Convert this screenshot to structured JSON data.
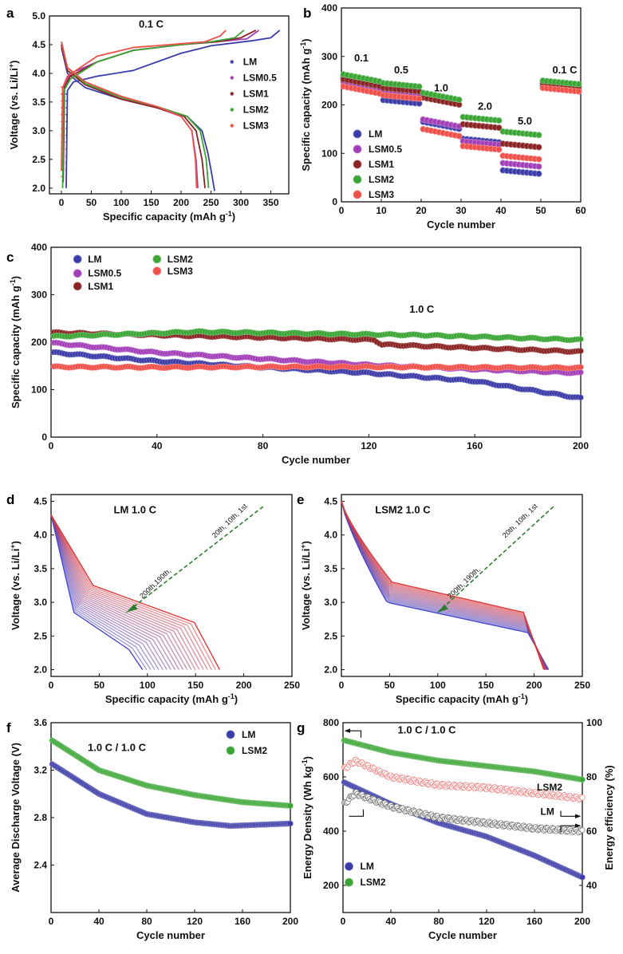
{
  "figure": {
    "width": 781,
    "height": 1196
  },
  "colors": {
    "LM": "#3b3ba8",
    "LSM0.5": "#a23fb8",
    "LSM1": "#8a2323",
    "LSM2": "#3aa534",
    "LSM3": "#f0504a",
    "LM_curve_first": "#e03a3a",
    "LM_curve_last": "#4a4acb",
    "arrow": "#2e7d2e"
  },
  "chart_data": [
    {
      "id": "a",
      "panel_label": "a",
      "type": "line",
      "annotation": "0.1 C",
      "xlabel": "Specific capacity (mAh g",
      "xlabel_sup": "-1",
      "xlabel_tail": ")",
      "ylabel": "Voltage (vs. Li/Li",
      "ylabel_sup": "+",
      "ylabel_tail": ")",
      "xlim": [
        -20,
        380
      ],
      "ylim": [
        1.9,
        5.0
      ],
      "xticks": [
        0,
        50,
        100,
        150,
        200,
        250,
        300,
        350
      ],
      "yticks": [
        2.0,
        2.5,
        3.0,
        3.5,
        4.0,
        4.5,
        5.0
      ],
      "legend": [
        "LM",
        "LSM0.5",
        "LSM1",
        "LSM2",
        "LSM3"
      ],
      "series": [
        {
          "name": "LM",
          "charge": [
            [
              8,
              2.0
            ],
            [
              10,
              3.7
            ],
            [
              20,
              3.85
            ],
            [
              60,
              3.95
            ],
            [
              120,
              4.05
            ],
            [
              200,
              4.35
            ],
            [
              250,
              4.48
            ],
            [
              320,
              4.57
            ],
            [
              350,
              4.62
            ],
            [
              365,
              4.75
            ]
          ],
          "discharge": [
            [
              0,
              4.45
            ],
            [
              10,
              4.0
            ],
            [
              40,
              3.75
            ],
            [
              100,
              3.55
            ],
            [
              160,
              3.4
            ],
            [
              210,
              3.25
            ],
            [
              235,
              3.0
            ],
            [
              245,
              2.6
            ],
            [
              252,
              2.2
            ],
            [
              256,
              1.95
            ]
          ]
        },
        {
          "name": "LSM0.5",
          "charge": [
            [
              3,
              2.3
            ],
            [
              5,
              3.8
            ],
            [
              15,
              4.0
            ],
            [
              60,
              4.2
            ],
            [
              120,
              4.4
            ],
            [
              200,
              4.5
            ],
            [
              260,
              4.55
            ],
            [
              310,
              4.6
            ],
            [
              330,
              4.75
            ]
          ],
          "discharge": [
            [
              0,
              4.5
            ],
            [
              10,
              4.05
            ],
            [
              40,
              3.8
            ],
            [
              100,
              3.55
            ],
            [
              160,
              3.4
            ],
            [
              200,
              3.25
            ],
            [
              218,
              3.0
            ],
            [
              225,
              2.5
            ],
            [
              228,
              2.0
            ]
          ]
        },
        {
          "name": "LSM1",
          "charge": [
            [
              3,
              2.1
            ],
            [
              5,
              3.75
            ],
            [
              15,
              3.95
            ],
            [
              60,
              4.2
            ],
            [
              120,
              4.4
            ],
            [
              200,
              4.5
            ],
            [
              260,
              4.55
            ],
            [
              300,
              4.62
            ],
            [
              325,
              4.75
            ]
          ],
          "discharge": [
            [
              0,
              4.5
            ],
            [
              10,
              4.05
            ],
            [
              40,
              3.8
            ],
            [
              100,
              3.55
            ],
            [
              160,
              3.4
            ],
            [
              205,
              3.25
            ],
            [
              225,
              3.0
            ],
            [
              235,
              2.5
            ],
            [
              240,
              2.0
            ]
          ]
        },
        {
          "name": "LSM2",
          "charge": [
            [
              2,
              2.0
            ],
            [
              4,
              3.7
            ],
            [
              15,
              3.9
            ],
            [
              60,
              4.2
            ],
            [
              120,
              4.4
            ],
            [
              200,
              4.5
            ],
            [
              250,
              4.55
            ],
            [
              290,
              4.62
            ],
            [
              305,
              4.75
            ]
          ],
          "discharge": [
            [
              0,
              4.55
            ],
            [
              10,
              4.1
            ],
            [
              40,
              3.82
            ],
            [
              100,
              3.58
            ],
            [
              160,
              3.42
            ],
            [
              210,
              3.25
            ],
            [
              232,
              3.0
            ],
            [
              242,
              2.5
            ],
            [
              246,
              2.0
            ]
          ]
        },
        {
          "name": "LSM3",
          "charge": [
            [
              0,
              2.3
            ],
            [
              2,
              3.75
            ],
            [
              10,
              3.95
            ],
            [
              60,
              4.3
            ],
            [
              120,
              4.45
            ],
            [
              180,
              4.5
            ],
            [
              240,
              4.55
            ],
            [
              265,
              4.65
            ],
            [
              275,
              4.75
            ]
          ],
          "discharge": [
            [
              0,
              4.55
            ],
            [
              10,
              4.1
            ],
            [
              40,
              3.85
            ],
            [
              100,
              3.6
            ],
            [
              160,
              3.42
            ],
            [
              200,
              3.25
            ],
            [
              218,
              3.0
            ],
            [
              224,
              2.5
            ],
            [
              226,
              2.0
            ]
          ]
        }
      ]
    },
    {
      "id": "b",
      "panel_label": "b",
      "type": "scatter",
      "xlabel": "Cycle number",
      "ylabel": "Specific capacity (mAh g",
      "ylabel_sup": "-1",
      "ylabel_tail": ")",
      "xlim": [
        0,
        60
      ],
      "ylim": [
        0,
        400
      ],
      "xticks": [
        0,
        10,
        20,
        30,
        40,
        50,
        60
      ],
      "yticks": [
        0,
        100,
        200,
        300,
        400
      ],
      "rate_labels": [
        "0.1",
        "0.5",
        "1.0",
        "2.0",
        "5.0",
        "0.1 C"
      ],
      "legend": [
        "LM",
        "LSM0.5",
        "LSM1",
        "LSM2",
        "LSM3"
      ],
      "segments": [
        [
          1,
          10
        ],
        [
          11,
          20
        ],
        [
          21,
          30
        ],
        [
          31,
          40
        ],
        [
          41,
          50
        ],
        [
          51,
          60
        ]
      ],
      "series": [
        {
          "name": "LM",
          "values": [
            250,
            210,
            165,
            130,
            65,
            240
          ]
        },
        {
          "name": "LSM0.5",
          "values": [
            240,
            225,
            170,
            125,
            80,
            235
          ]
        },
        {
          "name": "LSM1",
          "values": [
            245,
            235,
            215,
            160,
            120,
            245
          ]
        },
        {
          "name": "LSM2",
          "values": [
            255,
            245,
            225,
            175,
            145,
            250
          ]
        },
        {
          "name": "LSM3",
          "values": [
            230,
            220,
            150,
            115,
            95,
            235
          ]
        }
      ]
    },
    {
      "id": "c",
      "panel_label": "c",
      "type": "scatter",
      "annotation": "1.0 C",
      "xlabel": "Cycle number",
      "ylabel": "Specific capacity (mAh g",
      "ylabel_sup": "-1",
      "ylabel_tail": ")",
      "xlim": [
        0,
        200
      ],
      "ylim": [
        0,
        400
      ],
      "xticks": [
        0,
        40,
        80,
        120,
        160,
        200
      ],
      "yticks": [
        0,
        100,
        200,
        300,
        400
      ],
      "legend": [
        "LM",
        "LSM0.5",
        "LSM1",
        "LSM2",
        "LSM3"
      ],
      "series": [
        {
          "name": "LM",
          "trend": [
            [
              1,
              178
            ],
            [
              40,
              160
            ],
            [
              80,
              147
            ],
            [
              120,
              135
            ],
            [
              160,
              118
            ],
            [
              200,
              82
            ]
          ]
        },
        {
          "name": "LSM0.5",
          "trend": [
            [
              1,
              198
            ],
            [
              40,
              178
            ],
            [
              80,
              165
            ],
            [
              120,
              152
            ],
            [
              160,
              143
            ],
            [
              200,
              135
            ]
          ]
        },
        {
          "name": "LSM1",
          "trend": [
            [
              1,
              220
            ],
            [
              40,
              215
            ],
            [
              80,
              210
            ],
            [
              122,
              205
            ],
            [
              125,
              195
            ],
            [
              160,
              188
            ],
            [
              200,
              180
            ]
          ]
        },
        {
          "name": "LSM2",
          "trend": [
            [
              1,
              212
            ],
            [
              55,
              222
            ],
            [
              100,
              218
            ],
            [
              140,
              215
            ],
            [
              200,
              205
            ]
          ]
        },
        {
          "name": "LSM3",
          "trend": [
            [
              1,
              148
            ],
            [
              40,
              147
            ],
            [
              80,
              148
            ],
            [
              120,
              148
            ],
            [
              160,
              147
            ],
            [
              200,
              146
            ]
          ]
        }
      ]
    },
    {
      "id": "d",
      "panel_label": "d",
      "type": "line",
      "annotation": "LM 1.0 C",
      "arrow_labels": [
        "20th, 10th, 1st",
        "200th,190th,"
      ],
      "xlabel": "Specific capacity (mAh g",
      "xlabel_sup": "-1",
      "xlabel_tail": ")",
      "ylabel": "Voltage (vs. Li/Li",
      "ylabel_sup": "+",
      "ylabel_tail": ")",
      "xlim": [
        0,
        250
      ],
      "ylim": [
        1.9,
        4.6
      ],
      "xticks": [
        0,
        50,
        100,
        150,
        200,
        250
      ],
      "yticks": [
        2.0,
        2.5,
        3.0,
        3.5,
        4.0,
        4.5
      ],
      "curves": {
        "start_voltage": 4.3,
        "first_capacity": 175,
        "last_capacity": 95,
        "first_plateau": 2.7,
        "last_plateau": 2.3,
        "count": 20
      }
    },
    {
      "id": "e",
      "panel_label": "e",
      "type": "line",
      "annotation": "LSM2 1.0 C",
      "arrow_labels": [
        "20th, 10th, 1st",
        "200th, 190th,"
      ],
      "xlabel": "Specific capacity (mAh g",
      "xlabel_sup": "-1",
      "xlabel_tail": ")",
      "ylabel": "Voltage (vs. Li/Li",
      "ylabel_sup": "+",
      "ylabel_tail": ")",
      "xlim": [
        0,
        250
      ],
      "ylim": [
        1.9,
        4.6
      ],
      "xticks": [
        0,
        50,
        100,
        150,
        200,
        250
      ],
      "yticks": [
        2.0,
        2.5,
        3.0,
        3.5,
        4.0,
        4.5
      ],
      "curves": {
        "start_voltage": 4.5,
        "first_capacity": 210,
        "last_capacity": 215,
        "first_plateau": 3.0,
        "last_plateau": 2.7,
        "count": 20
      }
    },
    {
      "id": "f",
      "panel_label": "f",
      "type": "scatter",
      "annotation": "1.0 C / 1.0 C",
      "xlabel": "Cycle number",
      "ylabel": "Average Discharge Voltage (V)",
      "xlim": [
        0,
        200
      ],
      "ylim": [
        2.0,
        3.6
      ],
      "xticks": [
        0,
        40,
        80,
        120,
        160,
        200
      ],
      "yticks": [
        2.4,
        2.8,
        3.2,
        3.6
      ],
      "legend": [
        "LM",
        "LSM2"
      ],
      "series": [
        {
          "name": "LM",
          "trend": [
            [
              1,
              3.25
            ],
            [
              40,
              3.0
            ],
            [
              80,
              2.83
            ],
            [
              120,
              2.76
            ],
            [
              150,
              2.73
            ],
            [
              200,
              2.75
            ]
          ]
        },
        {
          "name": "LSM2",
          "trend": [
            [
              1,
              3.45
            ],
            [
              40,
              3.2
            ],
            [
              80,
              3.07
            ],
            [
              120,
              2.99
            ],
            [
              160,
              2.93
            ],
            [
              200,
              2.9
            ]
          ]
        }
      ]
    },
    {
      "id": "g",
      "panel_label": "g",
      "type": "scatter",
      "annotation": "1.0 C / 1.0 C",
      "xlabel": "Cycle number",
      "ylabel": "Energy Density (Wh kg",
      "ylabel_sup": "-1",
      "ylabel_tail": ")",
      "y2label": "Energy efficiency (%)",
      "xlim": [
        0,
        200
      ],
      "ylim": [
        100,
        800
      ],
      "y2lim": [
        30,
        100
      ],
      "xticks": [
        0,
        40,
        80,
        120,
        160,
        200
      ],
      "yticks": [
        200,
        400,
        600,
        800
      ],
      "y2ticks": [
        40,
        60,
        80,
        100
      ],
      "legend": [
        "LM",
        "LSM2"
      ],
      "curve_labels": [
        "LSM2",
        "LM"
      ],
      "series": [
        {
          "name": "LM",
          "axis": "y",
          "trend": [
            [
              1,
              580
            ],
            [
              40,
              500
            ],
            [
              80,
              430
            ],
            [
              120,
              380
            ],
            [
              160,
              310
            ],
            [
              200,
              230
            ]
          ]
        },
        {
          "name": "LSM2",
          "axis": "y",
          "trend": [
            [
              1,
              735
            ],
            [
              40,
              690
            ],
            [
              80,
              660
            ],
            [
              120,
              640
            ],
            [
              160,
              620
            ],
            [
              200,
              590
            ]
          ]
        },
        {
          "name": "LM",
          "axis": "y2",
          "trend": [
            [
              1,
              70
            ],
            [
              10,
              74
            ],
            [
              40,
              69
            ],
            [
              80,
              65
            ],
            [
              120,
              63
            ],
            [
              160,
              61
            ],
            [
              200,
              60
            ]
          ]
        },
        {
          "name": "LSM2",
          "axis": "y2",
          "trend": [
            [
              1,
              83
            ],
            [
              10,
              86
            ],
            [
              40,
              80
            ],
            [
              80,
              77
            ],
            [
              120,
              76
            ],
            [
              160,
              74
            ],
            [
              200,
              72
            ]
          ]
        }
      ]
    }
  ]
}
